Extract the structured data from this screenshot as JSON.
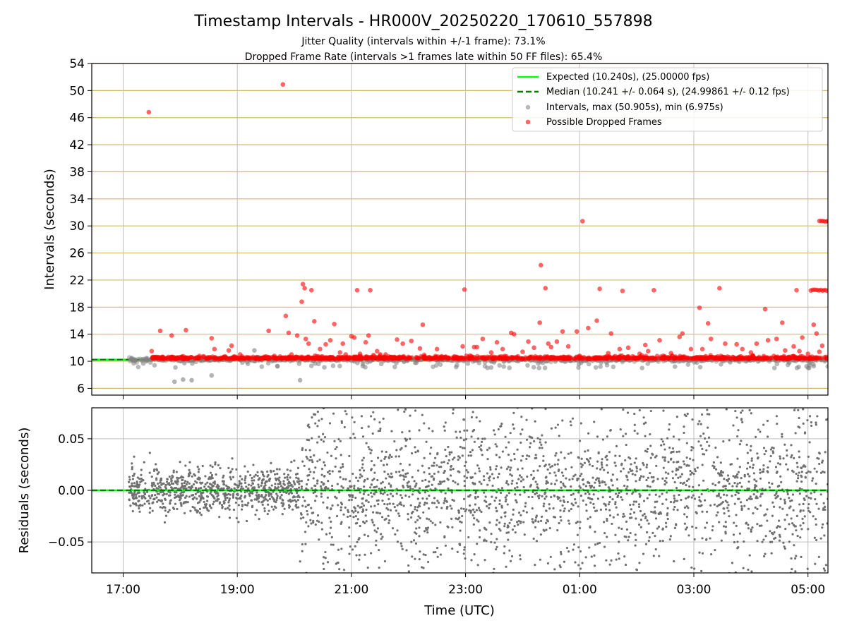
{
  "title": "Timestamp Intervals - HR000V_20250220_170610_557898",
  "subtitle_1": "Jitter Quality (intervals within +/-1 frame): 73.1%",
  "subtitle_2": "Dropped Frame Rate (intervals >1 frames late within 50 FF files): 65.4%",
  "colors": {
    "expected": "#00ff00",
    "median": "#008000",
    "intervals": "#808080",
    "dropped": "#ff0000",
    "hgrid_top": "#d4b96a",
    "grid": "#c0c0c0"
  },
  "chart_data": [
    {
      "type": "scatter",
      "ylabel": "Intervals (seconds)",
      "ylim": [
        5,
        54
      ],
      "yticks": [
        "6",
        "10",
        "14",
        "18",
        "22",
        "26",
        "30",
        "34",
        "38",
        "42",
        "46",
        "50",
        "54"
      ],
      "xlim_hours": [
        16.45,
        29.35
      ],
      "grid": true,
      "legend_position": "top-right",
      "legend": [
        "Expected (10.240s), (25.00000 fps)",
        "Median (10.241 +/- 0.064 s), (24.99861 +/- 0.12 fps)",
        "Intervals, max (50.905s), min (6.975s)",
        "Possible Dropped Frames"
      ],
      "expected_interval": 10.24,
      "median_interval": 10.241,
      "intervals_max": 50.905,
      "intervals_min": 6.975,
      "dropped_outliers": [
        [
          17.45,
          46.8
        ],
        [
          19.8,
          50.9
        ],
        [
          17.5,
          11.5
        ],
        [
          17.65,
          14.5
        ],
        [
          17.85,
          13.8
        ],
        [
          18.1,
          14.6
        ],
        [
          18.2,
          10.6
        ],
        [
          18.55,
          13.4
        ],
        [
          18.6,
          11.8
        ],
        [
          18.85,
          11.6
        ],
        [
          18.9,
          12.3
        ],
        [
          19.05,
          11.0
        ],
        [
          19.55,
          14.5
        ],
        [
          19.65,
          10.8
        ],
        [
          19.85,
          16.7
        ],
        [
          19.9,
          14.2
        ],
        [
          19.95,
          11.0
        ],
        [
          20.05,
          13.8
        ],
        [
          20.15,
          21.4
        ],
        [
          20.18,
          20.8
        ],
        [
          20.13,
          18.8
        ],
        [
          20.2,
          13.3
        ],
        [
          20.25,
          12.6
        ],
        [
          20.3,
          20.5
        ],
        [
          20.35,
          15.9
        ],
        [
          20.45,
          11.8
        ],
        [
          20.55,
          12.5
        ],
        [
          20.63,
          13.1
        ],
        [
          20.7,
          15.5
        ],
        [
          20.8,
          11.3
        ],
        [
          20.85,
          12.6
        ],
        [
          20.9,
          11.0
        ],
        [
          21.0,
          13.7
        ],
        [
          21.05,
          13.5
        ],
        [
          21.1,
          20.5
        ],
        [
          21.15,
          11.1
        ],
        [
          21.25,
          12.8
        ],
        [
          21.3,
          13.8
        ],
        [
          21.33,
          20.5
        ],
        [
          21.45,
          11.5
        ],
        [
          21.6,
          11.0
        ],
        [
          21.8,
          13.2
        ],
        [
          21.9,
          12.6
        ],
        [
          22.05,
          13.0
        ],
        [
          22.2,
          11.9
        ],
        [
          22.25,
          15.4
        ],
        [
          22.5,
          11.8
        ],
        [
          22.95,
          12.2
        ],
        [
          22.98,
          20.6
        ],
        [
          23.15,
          12.1
        ],
        [
          23.2,
          12.1
        ],
        [
          23.3,
          13.3
        ],
        [
          23.45,
          11.3
        ],
        [
          23.55,
          12.8
        ],
        [
          23.65,
          11.8
        ],
        [
          23.8,
          14.2
        ],
        [
          23.85,
          14.0
        ],
        [
          24.0,
          11.4
        ],
        [
          24.1,
          12.9
        ],
        [
          24.2,
          12.0
        ],
        [
          24.3,
          15.7
        ],
        [
          24.32,
          24.2
        ],
        [
          24.4,
          20.8
        ],
        [
          24.45,
          12.6
        ],
        [
          24.5,
          12.1
        ],
        [
          24.6,
          12.9
        ],
        [
          24.7,
          14.4
        ],
        [
          24.8,
          12.2
        ],
        [
          24.95,
          14.4
        ],
        [
          25.0,
          10.8
        ],
        [
          25.05,
          30.7
        ],
        [
          25.15,
          14.9
        ],
        [
          25.3,
          16.0
        ],
        [
          25.35,
          20.7
        ],
        [
          25.5,
          11.2
        ],
        [
          25.55,
          14.1
        ],
        [
          25.7,
          11.8
        ],
        [
          25.75,
          20.4
        ],
        [
          25.85,
          12.0
        ],
        [
          26.05,
          11.1
        ],
        [
          26.15,
          12.4
        ],
        [
          26.2,
          11.5
        ],
        [
          26.3,
          20.5
        ],
        [
          26.4,
          13.1
        ],
        [
          26.6,
          11.2
        ],
        [
          26.75,
          13.6
        ],
        [
          26.8,
          14.1
        ],
        [
          26.95,
          11.8
        ],
        [
          27.1,
          17.9
        ],
        [
          27.15,
          11.8
        ],
        [
          27.25,
          15.6
        ],
        [
          27.3,
          13.3
        ],
        [
          27.45,
          20.8
        ],
        [
          27.55,
          12.6
        ],
        [
          27.75,
          12.5
        ],
        [
          27.85,
          11.8
        ],
        [
          28.0,
          11.3
        ],
        [
          28.1,
          12.6
        ],
        [
          28.25,
          17.7
        ],
        [
          28.3,
          13.1
        ],
        [
          28.45,
          13.3
        ],
        [
          28.55,
          15.7
        ],
        [
          28.6,
          11.6
        ],
        [
          28.75,
          12.2
        ],
        [
          28.8,
          20.5
        ],
        [
          28.85,
          11.5
        ],
        [
          28.9,
          13.5
        ],
        [
          29.0,
          11.1
        ],
        [
          29.1,
          15.4
        ],
        [
          29.15,
          14.1
        ],
        [
          29.2,
          11.4
        ],
        [
          29.25,
          12.3
        ]
      ],
      "dropped_clusters": [
        {
          "x_from": 29.05,
          "x_to": 29.35,
          "y": 20.5
        },
        {
          "x_from": 29.2,
          "x_to": 29.35,
          "y": 30.7
        }
      ],
      "low_gray_points": [
        [
          17.9,
          6.975
        ],
        [
          18.05,
          7.3
        ],
        [
          18.2,
          7.2
        ],
        [
          18.55,
          7.9
        ],
        [
          20.1,
          7.2
        ],
        [
          21.2,
          9.3
        ],
        [
          19.3,
          11.6
        ]
      ]
    },
    {
      "type": "scatter",
      "ylabel": "Residuals (seconds)",
      "xlabel": "Time (UTC)",
      "ylim": [
        -0.08,
        0.08
      ],
      "yticks": [
        "0.05",
        "0.00",
        "−0.05"
      ],
      "xticks": [
        "17:00",
        "19:00",
        "21:00",
        "23:00",
        "01:00",
        "03:00",
        "05:00"
      ],
      "xtick_hours": [
        17,
        19,
        21,
        23,
        25,
        27,
        29
      ],
      "xlim_hours": [
        16.45,
        29.35
      ],
      "grid": true,
      "zero_line": 0.0,
      "noise_profile": [
        {
          "x_from": 17.1,
          "x_to": 20.1,
          "spread": 0.02
        },
        {
          "x_from": 20.1,
          "x_to": 29.35,
          "spread": 0.05
        }
      ]
    }
  ]
}
